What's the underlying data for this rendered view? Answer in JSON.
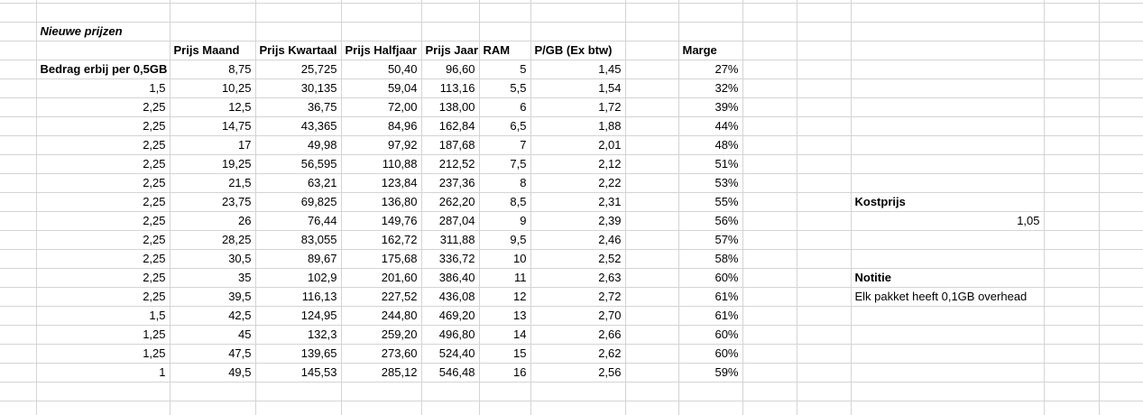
{
  "colors": {
    "background": "#ffffff",
    "gridline": "#d4d4d4",
    "text": "#000000"
  },
  "sheet": {
    "title": "Nieuwe prijzen",
    "headers": [
      "Prijs Maand",
      "Prijs Kwartaal",
      "Prijs Halfjaar",
      "Prijs Jaar",
      "RAM",
      "P/GB (Ex btw)",
      "Marge"
    ],
    "first_row_label": "Bedrag erbij per 0,5GB",
    "rows": [
      [
        "",
        "8,75",
        "25,725",
        "50,40",
        "96,60",
        "5",
        "1,45",
        "27%"
      ],
      [
        "1,5",
        "10,25",
        "30,135",
        "59,04",
        "113,16",
        "5,5",
        "1,54",
        "32%"
      ],
      [
        "2,25",
        "12,5",
        "36,75",
        "72,00",
        "138,00",
        "6",
        "1,72",
        "39%"
      ],
      [
        "2,25",
        "14,75",
        "43,365",
        "84,96",
        "162,84",
        "6,5",
        "1,88",
        "44%"
      ],
      [
        "2,25",
        "17",
        "49,98",
        "97,92",
        "187,68",
        "7",
        "2,01",
        "48%"
      ],
      [
        "2,25",
        "19,25",
        "56,595",
        "110,88",
        "212,52",
        "7,5",
        "2,12",
        "51%"
      ],
      [
        "2,25",
        "21,5",
        "63,21",
        "123,84",
        "237,36",
        "8",
        "2,22",
        "53%"
      ],
      [
        "2,25",
        "23,75",
        "69,825",
        "136,80",
        "262,20",
        "8,5",
        "2,31",
        "55%"
      ],
      [
        "2,25",
        "26",
        "76,44",
        "149,76",
        "287,04",
        "9",
        "2,39",
        "56%"
      ],
      [
        "2,25",
        "28,25",
        "83,055",
        "162,72",
        "311,88",
        "9,5",
        "2,46",
        "57%"
      ],
      [
        "2,25",
        "30,5",
        "89,67",
        "175,68",
        "336,72",
        "10",
        "2,52",
        "58%"
      ],
      [
        "2,25",
        "35",
        "102,9",
        "201,60",
        "386,40",
        "11",
        "2,63",
        "60%"
      ],
      [
        "2,25",
        "39,5",
        "116,13",
        "227,52",
        "436,08",
        "12",
        "2,72",
        "61%"
      ],
      [
        "1,5",
        "42,5",
        "124,95",
        "244,80",
        "469,20",
        "13",
        "2,70",
        "61%"
      ],
      [
        "1,25",
        "45",
        "132,3",
        "259,20",
        "496,80",
        "14",
        "2,66",
        "60%"
      ],
      [
        "1,25",
        "47,5",
        "139,65",
        "273,60",
        "524,40",
        "15",
        "2,62",
        "60%"
      ],
      [
        "1",
        "49,5",
        "145,53",
        "285,12",
        "546,48",
        "16",
        "2,56",
        "59%"
      ]
    ],
    "side": {
      "kostprijs_label": "Kostprijs",
      "kostprijs_value": "1,05",
      "notitie_label": "Notitie",
      "notitie_text": "Elk pakket heeft 0,1GB overhead"
    }
  }
}
